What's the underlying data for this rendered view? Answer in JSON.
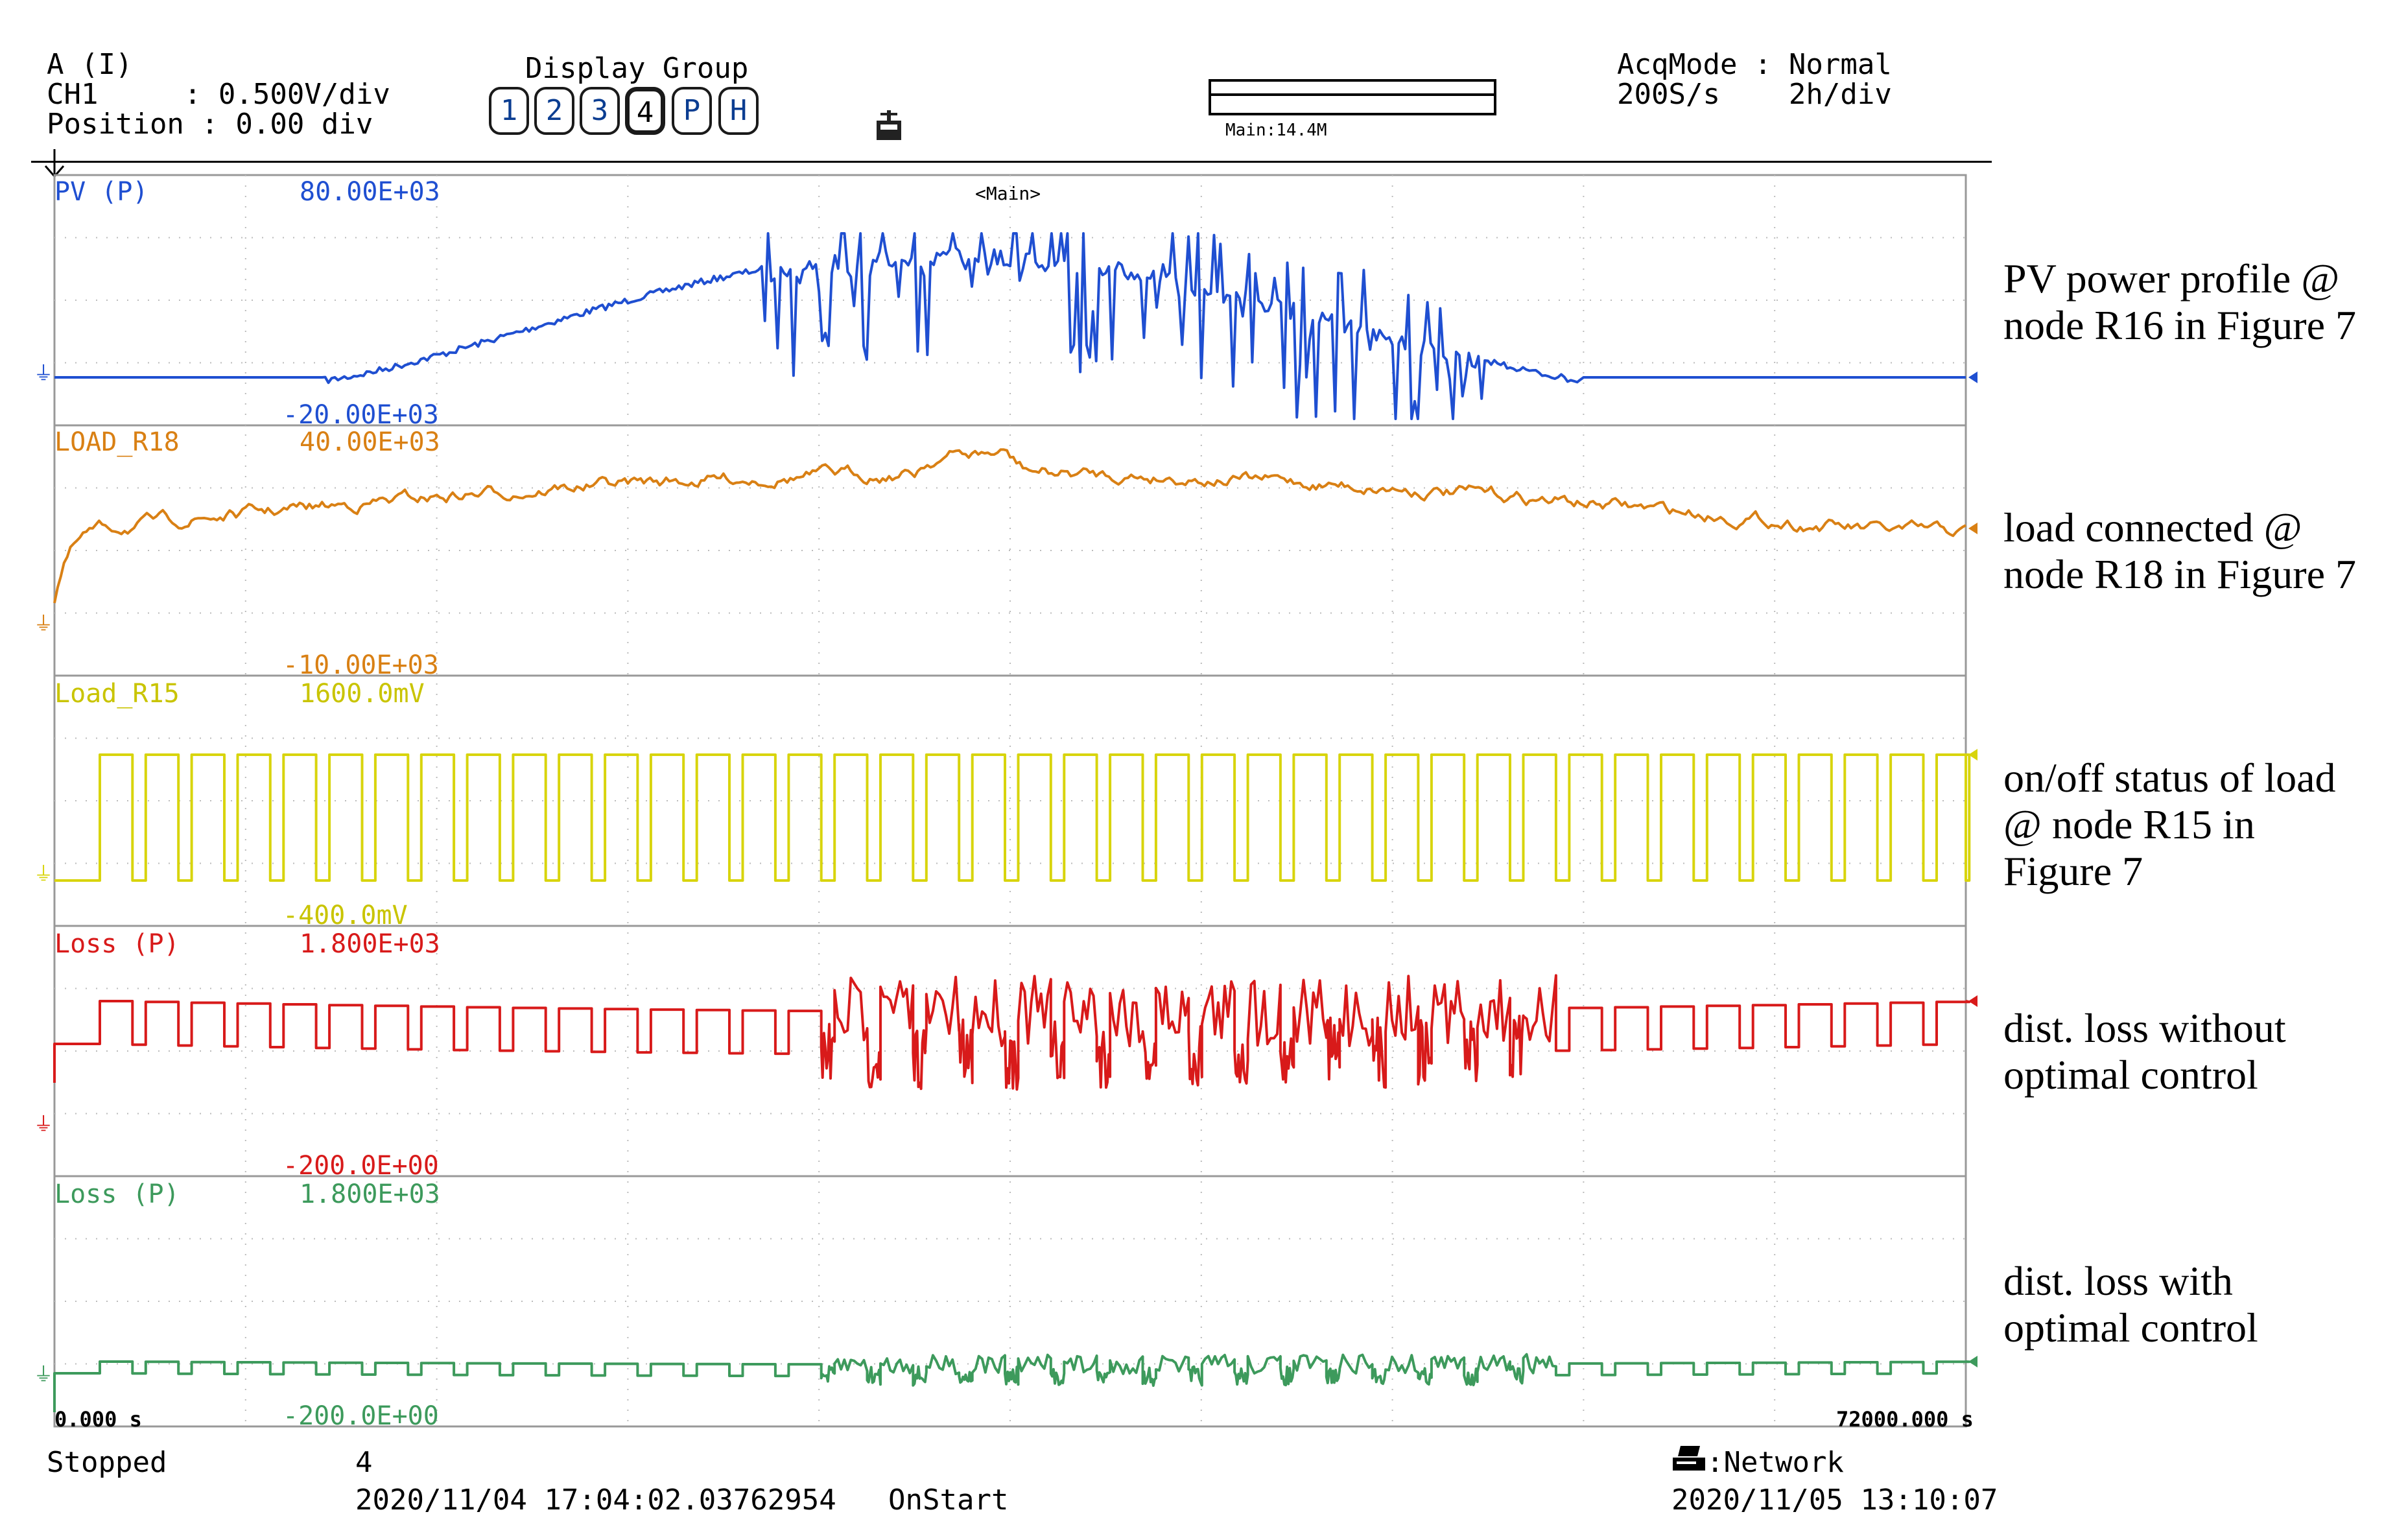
{
  "header": {
    "trigger_line1": "A (I)",
    "trigger_line2": "CH1     : 0.500V/div",
    "trigger_line3": "Position : 0.00 div",
    "display_group_label": "Display Group",
    "display_group_buttons": [
      "1",
      "2",
      "3",
      "4",
      "P",
      "H"
    ],
    "display_group_active": "4",
    "main_memory_label": "Main:14.4M",
    "acq_line1": "AcqMode : Normal",
    "acq_line2": "200S/s    2h/div",
    "main_tag": "<Main>"
  },
  "traces": [
    {
      "name": "PV (P)",
      "scale_top": "80.00E+03",
      "scale_bottom": "-20.00E+03",
      "color": "#1f4fd1",
      "annotation": [
        "PV power profile @",
        "node R16 in Figure 7"
      ]
    },
    {
      "name": "LOAD_R18",
      "scale_top": "40.00E+03",
      "scale_bottom": "-10.00E+03",
      "color": "#d98014",
      "annotation": [
        "load connected @",
        "node R18 in Figure 7"
      ]
    },
    {
      "name": "Load_R15",
      "scale_top": "1600.0mV",
      "scale_bottom": "-400.0mV",
      "color": "#d8d40c",
      "annotation": [
        "on/off status of load",
        "@ node R15 in",
        "Figure 7"
      ]
    },
    {
      "name": "Loss (P)",
      "scale_top": "1.800E+03",
      "scale_bottom": "-200.0E+00",
      "color": "#d81a1a",
      "annotation": [
        "dist. loss without",
        "optimal control"
      ]
    },
    {
      "name": "Loss (P)",
      "scale_top": "1.800E+03",
      "scale_bottom": "-200.0E+00",
      "color": "#3d9a5c",
      "annotation": [
        "dist. loss with",
        "optimal control"
      ]
    }
  ],
  "time_axis": {
    "start": "0.000 s",
    "end": "72000.000 s"
  },
  "footer": {
    "status": "Stopped",
    "count": "4",
    "start_time": "2020/11/04 17:04:02.03762954",
    "trigger_mode": "OnStart",
    "network": ":Network",
    "end_time": "2020/11/05 13:10:07"
  }
}
